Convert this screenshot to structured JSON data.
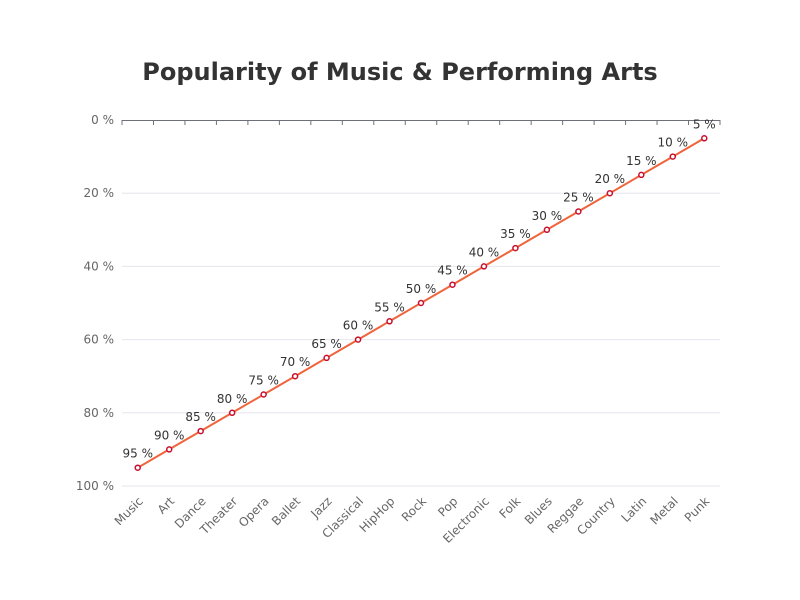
{
  "chart_data": {
    "type": "line",
    "title": "Popularity of Music & Performing Arts",
    "xlabel": "",
    "ylabel": "",
    "categories": [
      "Music",
      "Art",
      "Dance",
      "Theater",
      "Opera",
      "Ballet",
      "Jazz",
      "Classical",
      "HipHop",
      "Rock",
      "Pop",
      "Electronic",
      "Folk",
      "Blues",
      "Reggae",
      "Country",
      "Latin",
      "Metal",
      "Punk"
    ],
    "series": [
      {
        "values": [
          95,
          90,
          85,
          80,
          75,
          70,
          65,
          60,
          55,
          50,
          45,
          40,
          35,
          30,
          25,
          20,
          15,
          10,
          5
        ]
      }
    ],
    "value_suffix": " %",
    "ylim": [
      0,
      100
    ],
    "y_ticks": [
      0,
      20,
      40,
      60,
      80,
      100
    ],
    "y_inverted": true,
    "grid": true,
    "line_color": "#f0643c",
    "point_color": "#c8102e"
  }
}
